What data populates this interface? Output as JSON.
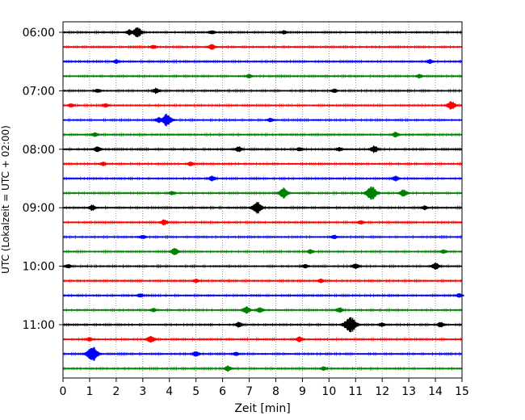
{
  "chart_data": {
    "type": "line",
    "title": "",
    "xlabel": "Zeit  [min]",
    "ylabel": "UTC (Lokalzeit = UTC + 02:00)",
    "xlim": [
      0,
      15
    ],
    "x_ticks": [
      0,
      1,
      2,
      3,
      4,
      5,
      6,
      7,
      8,
      9,
      10,
      11,
      12,
      13,
      14,
      15
    ],
    "x_tick_labels": [
      "0",
      "1",
      "2",
      "3",
      "4",
      "5",
      "6",
      "7",
      "8",
      "9",
      "10",
      "11",
      "12",
      "13",
      "14",
      "15"
    ],
    "y_tick_labels": [
      "06:00",
      "07:00",
      "08:00",
      "09:00",
      "10:00",
      "11:00"
    ],
    "grid": "vertical dotted",
    "trace_colors": [
      "#000000",
      "#ff0000",
      "#0000ff",
      "#008000"
    ],
    "traces": [
      {
        "start": "06:00",
        "events": [
          {
            "t": 2.8,
            "amp": 6
          },
          {
            "t": 2.5,
            "amp": 3
          },
          {
            "t": 5.6,
            "amp": 2
          },
          {
            "t": 8.3,
            "amp": 2
          }
        ]
      },
      {
        "start": "06:15",
        "events": [
          {
            "t": 5.6,
            "amp": 3
          },
          {
            "t": 3.4,
            "amp": 2
          }
        ]
      },
      {
        "start": "06:30",
        "events": [
          {
            "t": 2.0,
            "amp": 2
          },
          {
            "t": 13.8,
            "amp": 2
          }
        ]
      },
      {
        "start": "06:45",
        "events": [
          {
            "t": 7.0,
            "amp": 2
          },
          {
            "t": 13.4,
            "amp": 2
          }
        ]
      },
      {
        "start": "07:00",
        "events": [
          {
            "t": 3.5,
            "amp": 3
          },
          {
            "t": 1.3,
            "amp": 2
          },
          {
            "t": 10.2,
            "amp": 2
          }
        ]
      },
      {
        "start": "07:15",
        "events": [
          {
            "t": 14.6,
            "amp": 5
          },
          {
            "t": 0.3,
            "amp": 2
          },
          {
            "t": 1.6,
            "amp": 2
          }
        ]
      },
      {
        "start": "07:30",
        "events": [
          {
            "t": 3.9,
            "amp": 7
          },
          {
            "t": 3.6,
            "amp": 3
          },
          {
            "t": 7.8,
            "amp": 2
          }
        ]
      },
      {
        "start": "07:45",
        "events": [
          {
            "t": 1.2,
            "amp": 2
          },
          {
            "t": 12.5,
            "amp": 3
          }
        ]
      },
      {
        "start": "08:00",
        "events": [
          {
            "t": 1.3,
            "amp": 3
          },
          {
            "t": 6.6,
            "amp": 3
          },
          {
            "t": 11.7,
            "amp": 4
          },
          {
            "t": 8.9,
            "amp": 2
          },
          {
            "t": 10.4,
            "amp": 2
          }
        ]
      },
      {
        "start": "08:15",
        "events": [
          {
            "t": 1.5,
            "amp": 2
          },
          {
            "t": 4.8,
            "amp": 2
          }
        ]
      },
      {
        "start": "08:30",
        "events": [
          {
            "t": 5.6,
            "amp": 3
          },
          {
            "t": 12.5,
            "amp": 3
          }
        ]
      },
      {
        "start": "08:45",
        "events": [
          {
            "t": 8.3,
            "amp": 6
          },
          {
            "t": 11.6,
            "amp": 8
          },
          {
            "t": 12.8,
            "amp": 4
          },
          {
            "t": 4.1,
            "amp": 2
          }
        ]
      },
      {
        "start": "09:00",
        "events": [
          {
            "t": 7.3,
            "amp": 7
          },
          {
            "t": 1.1,
            "amp": 3
          },
          {
            "t": 13.6,
            "amp": 2
          }
        ]
      },
      {
        "start": "09:15",
        "events": [
          {
            "t": 3.8,
            "amp": 3
          },
          {
            "t": 11.2,
            "amp": 2
          }
        ]
      },
      {
        "start": "09:30",
        "events": [
          {
            "t": 3.0,
            "amp": 2
          },
          {
            "t": 10.2,
            "amp": 2
          }
        ]
      },
      {
        "start": "09:45",
        "events": [
          {
            "t": 4.2,
            "amp": 4
          },
          {
            "t": 9.3,
            "amp": 2
          },
          {
            "t": 14.3,
            "amp": 2
          }
        ]
      },
      {
        "start": "10:00",
        "events": [
          {
            "t": 14.0,
            "amp": 4
          },
          {
            "t": 11.0,
            "amp": 3
          },
          {
            "t": 9.1,
            "amp": 2
          },
          {
            "t": 0.2,
            "amp": 2
          }
        ]
      },
      {
        "start": "10:15",
        "events": [
          {
            "t": 9.7,
            "amp": 2
          },
          {
            "t": 5.0,
            "amp": 2
          }
        ]
      },
      {
        "start": "10:30",
        "events": [
          {
            "t": 14.9,
            "amp": 2
          },
          {
            "t": 2.9,
            "amp": 2
          }
        ]
      },
      {
        "start": "10:45",
        "events": [
          {
            "t": 6.9,
            "amp": 4
          },
          {
            "t": 7.4,
            "amp": 3
          },
          {
            "t": 10.4,
            "amp": 3
          },
          {
            "t": 3.4,
            "amp": 2
          }
        ]
      },
      {
        "start": "11:00",
        "events": [
          {
            "t": 10.8,
            "amp": 10
          },
          {
            "t": 6.6,
            "amp": 3
          },
          {
            "t": 14.2,
            "amp": 3
          },
          {
            "t": 12.0,
            "amp": 2
          }
        ]
      },
      {
        "start": "11:15",
        "events": [
          {
            "t": 3.3,
            "amp": 4
          },
          {
            "t": 8.9,
            "amp": 3
          },
          {
            "t": 1.0,
            "amp": 2
          }
        ]
      },
      {
        "start": "11:30",
        "events": [
          {
            "t": 1.1,
            "amp": 9
          },
          {
            "t": 5.0,
            "amp": 3
          },
          {
            "t": 6.5,
            "amp": 2
          }
        ]
      },
      {
        "start": "11:45",
        "events": [
          {
            "t": 6.2,
            "amp": 3
          },
          {
            "t": 9.8,
            "amp": 2
          }
        ]
      }
    ]
  }
}
